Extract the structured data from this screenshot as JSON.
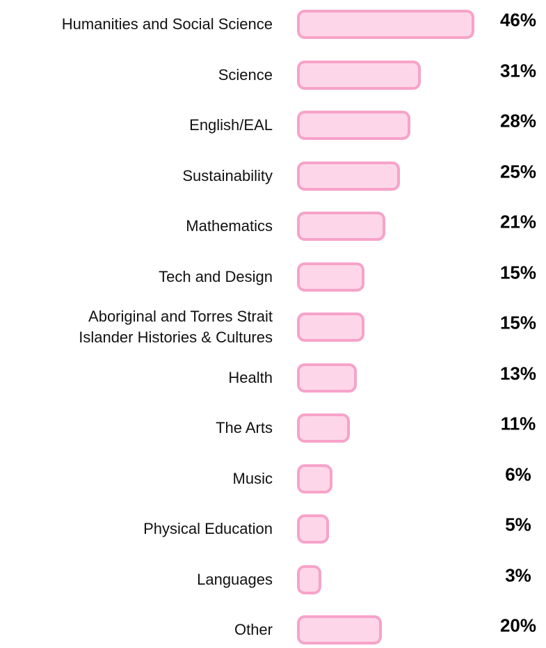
{
  "chart_data": {
    "type": "bar",
    "orientation": "horizontal",
    "categories": [
      "Humanities and Social Science",
      "Science",
      "English/EAL",
      "Sustainability",
      "Mathematics",
      "Tech and Design",
      "Aboriginal and Torres Strait\nIslander Histories & Cultures",
      "Health",
      "The Arts",
      "Music",
      "Physical Education",
      "Languages",
      "Other"
    ],
    "values": [
      46,
      31,
      28,
      25,
      21,
      15,
      15,
      13,
      11,
      6,
      5,
      3,
      20
    ],
    "value_labels": [
      "46%",
      "31%",
      "28%",
      "25%",
      "21%",
      "15%",
      "15%",
      "13%",
      "11%",
      "6%",
      "5%",
      "3%",
      "20%"
    ],
    "color": "#fdd7e9",
    "edge_color": "#f7a3c9"
  }
}
